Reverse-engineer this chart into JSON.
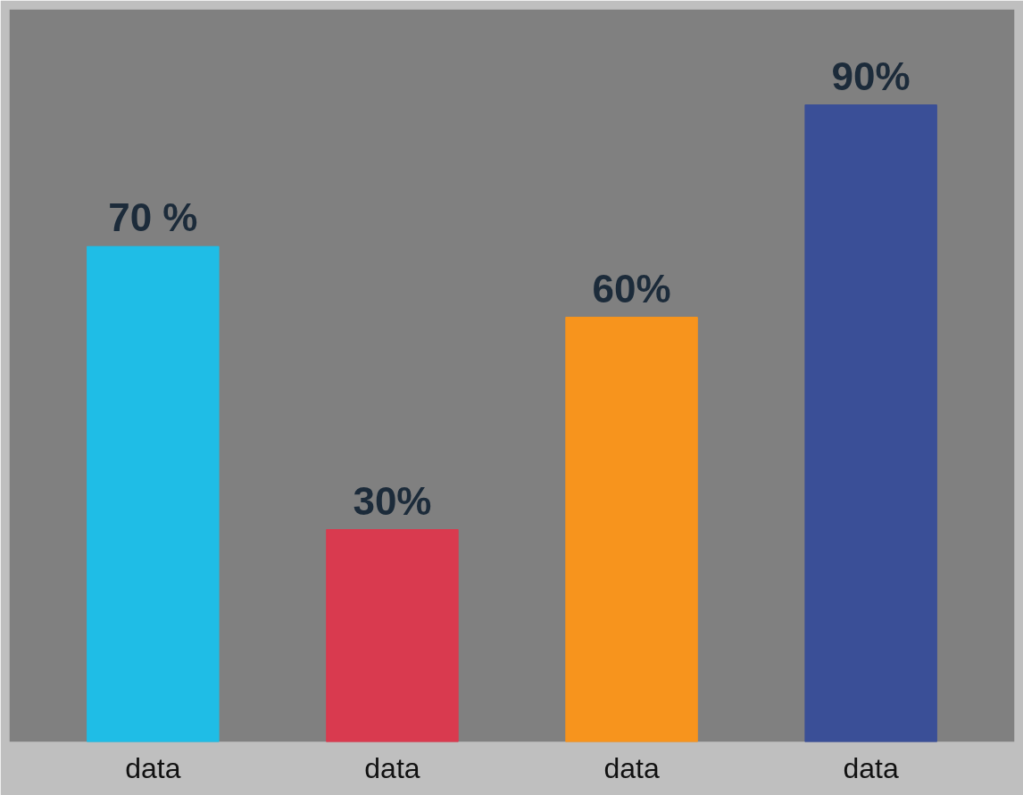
{
  "chart_data": {
    "type": "bar",
    "categories": [
      "data",
      "data",
      "data",
      "data"
    ],
    "values": [
      70,
      30,
      60,
      90
    ],
    "colors": [
      "#1fbde6",
      "#d93a4f",
      "#f7941d",
      "#3a4f97"
    ],
    "value_labels": [
      "70 %",
      "30%",
      "60%",
      "90%"
    ],
    "grid": false
  }
}
